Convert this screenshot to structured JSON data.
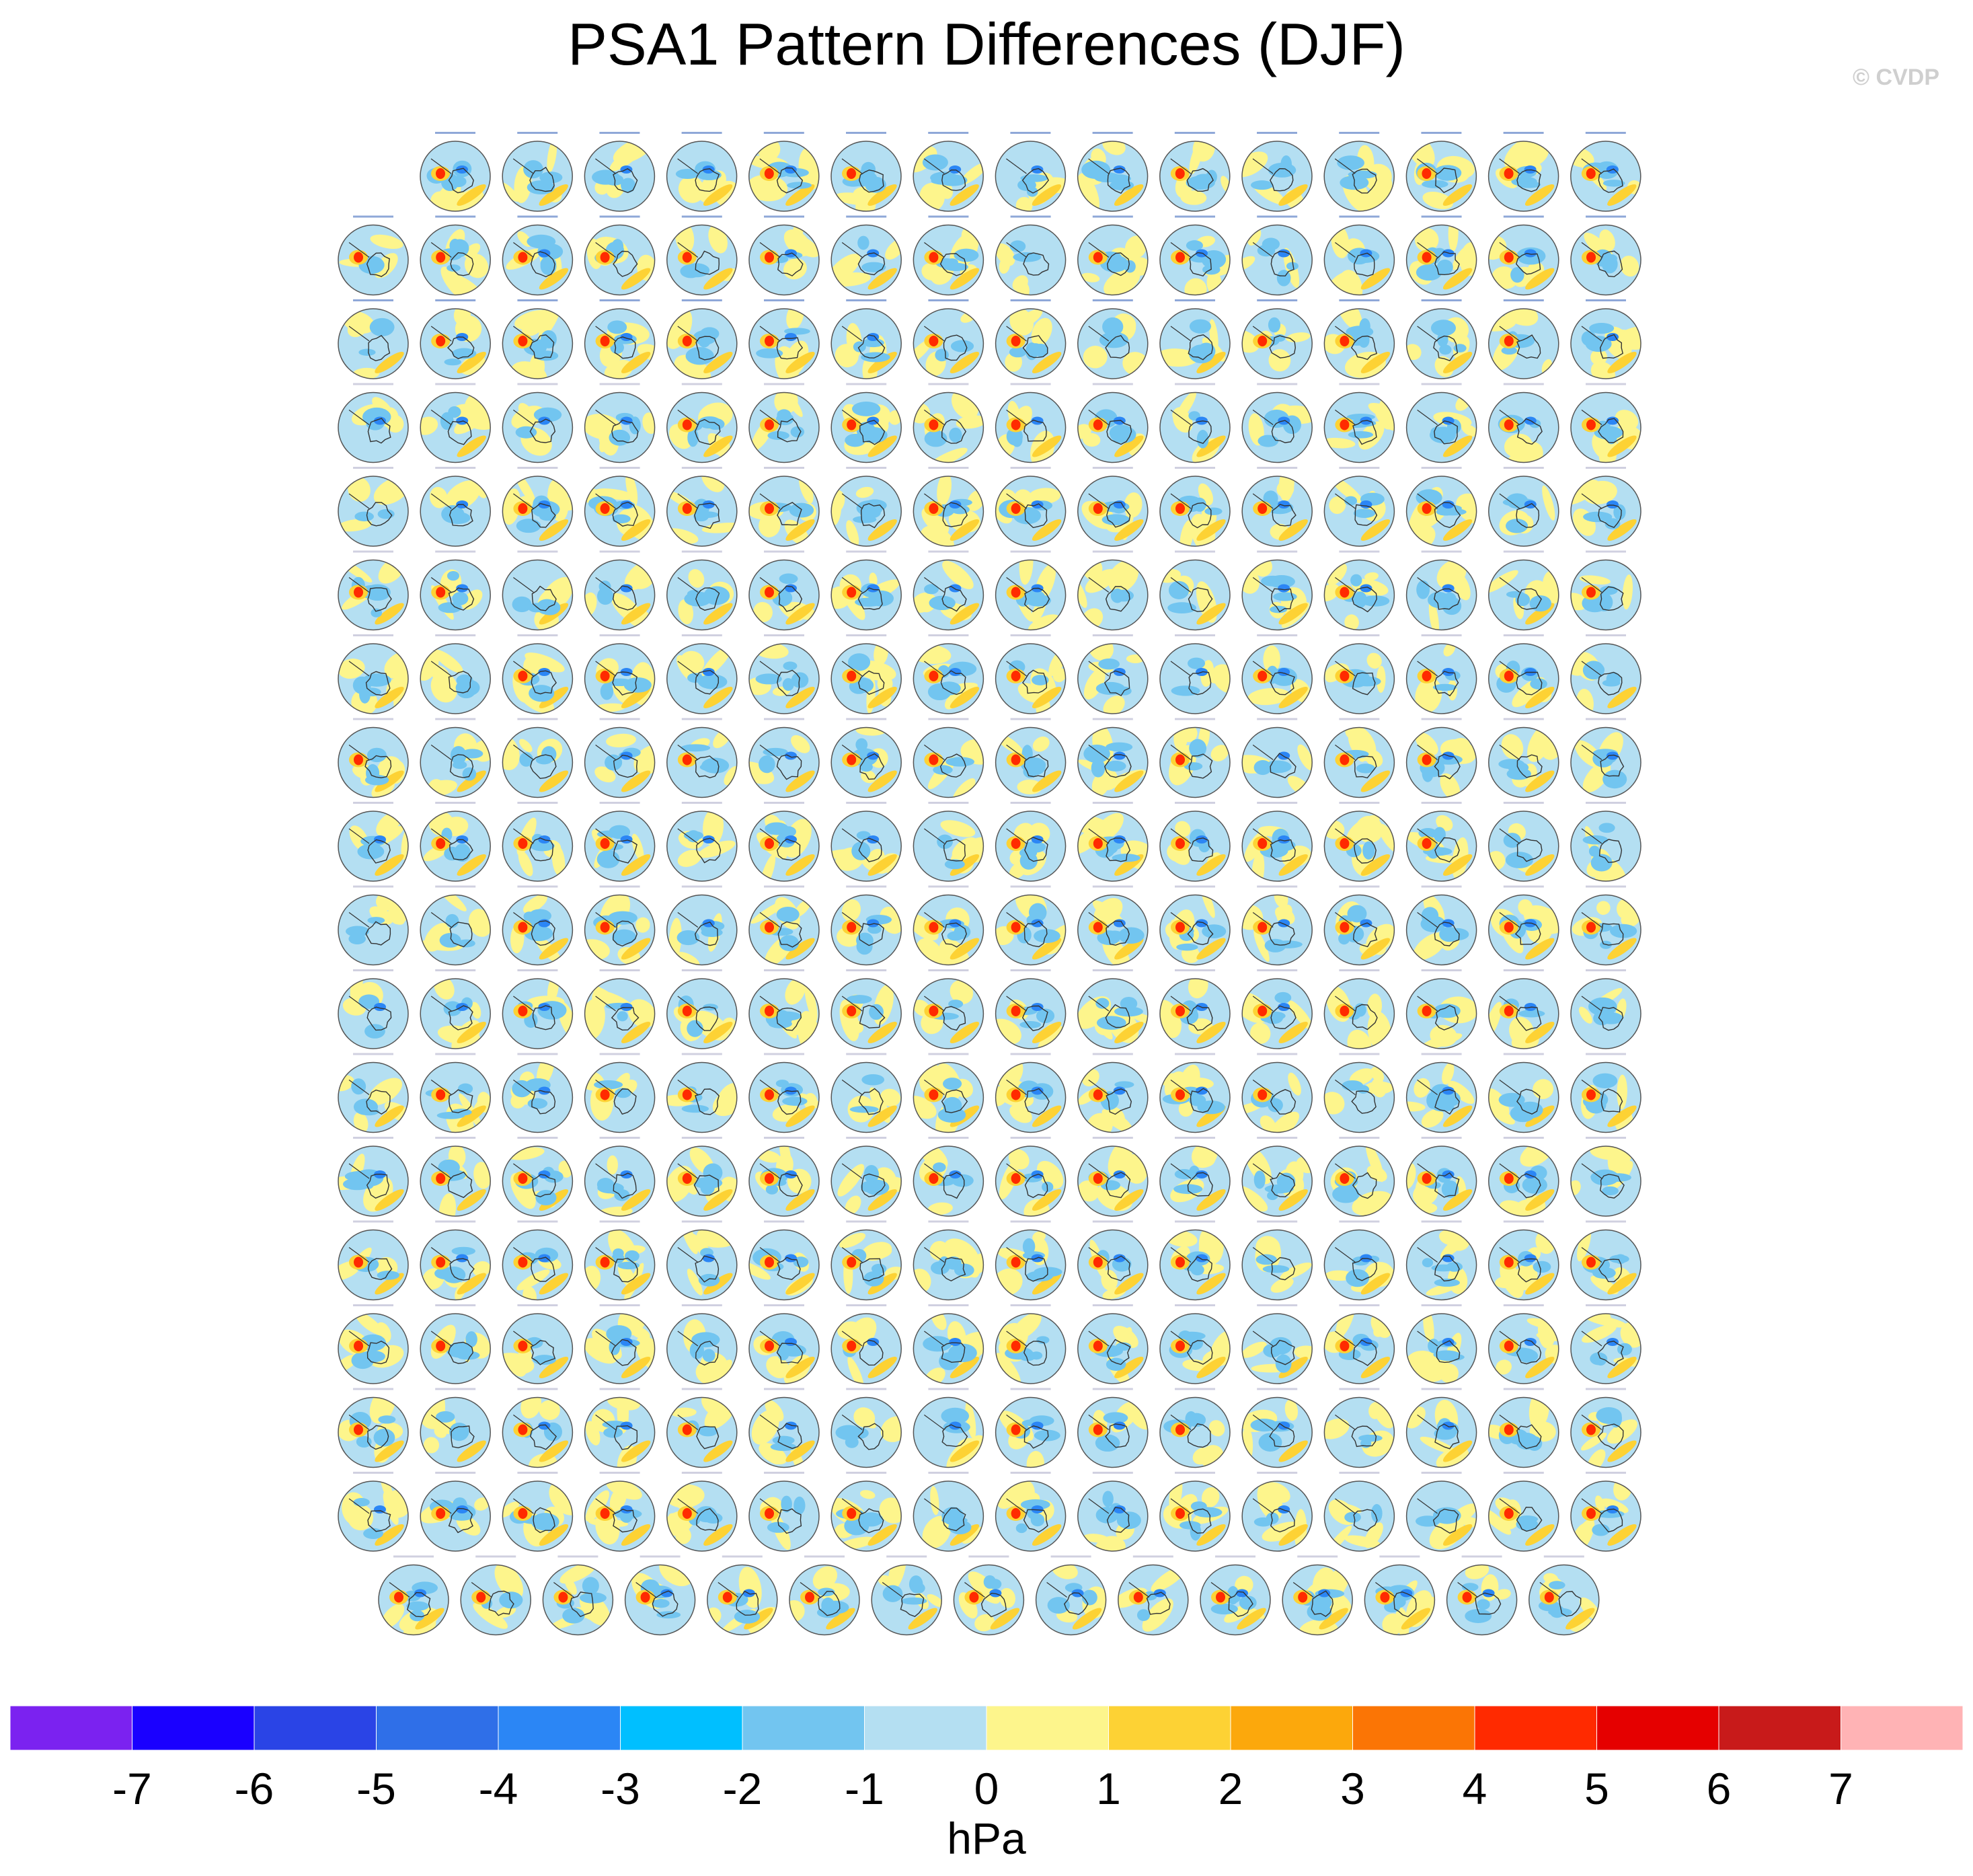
{
  "title": "PSA1 Pattern Differences (DJF)",
  "watermark": "© CVDP",
  "chart_data": {
    "type": "panel-grid-polar-contour",
    "season": "DJF",
    "variable": "PSA1 pattern difference",
    "panel_layout": {
      "rows": 18,
      "panels_per_row": [
        15,
        16,
        16,
        16,
        16,
        16,
        16,
        16,
        16,
        16,
        16,
        16,
        16,
        16,
        16,
        16,
        16,
        15
      ],
      "total_panels": 286
    },
    "colorbar": {
      "units": "hPa",
      "levels": [
        -7,
        -6,
        -5,
        -4,
        -3,
        -2,
        -1,
        0,
        1,
        2,
        3,
        4,
        5,
        6,
        7
      ],
      "tick_labels": [
        "-7",
        "-6",
        "-5",
        "-4",
        "-3",
        "-2",
        "-1",
        "0",
        "1",
        "2",
        "3",
        "4",
        "5",
        "6",
        "7"
      ],
      "colors": [
        "#7b22f0",
        "#1a00ff",
        "#2a44e6",
        "#2f6fe8",
        "#2b86f5",
        "#00bfff",
        "#72c5f0",
        "#b4dff2",
        "#fdf58c",
        "#fdd234",
        "#fca80c",
        "#fb7505",
        "#ff2a00",
        "#e50000",
        "#c81a1a",
        "#ffb3b5"
      ]
    },
    "panel_colors": {
      "background": "#b4dff2",
      "positive": "#fdf58c",
      "positive_strong": "#fdd234",
      "negative": "#72c5f0",
      "negative_strong": "#2b86f5",
      "extreme_positive": "#ff2a00",
      "coastline": "#333333"
    }
  }
}
